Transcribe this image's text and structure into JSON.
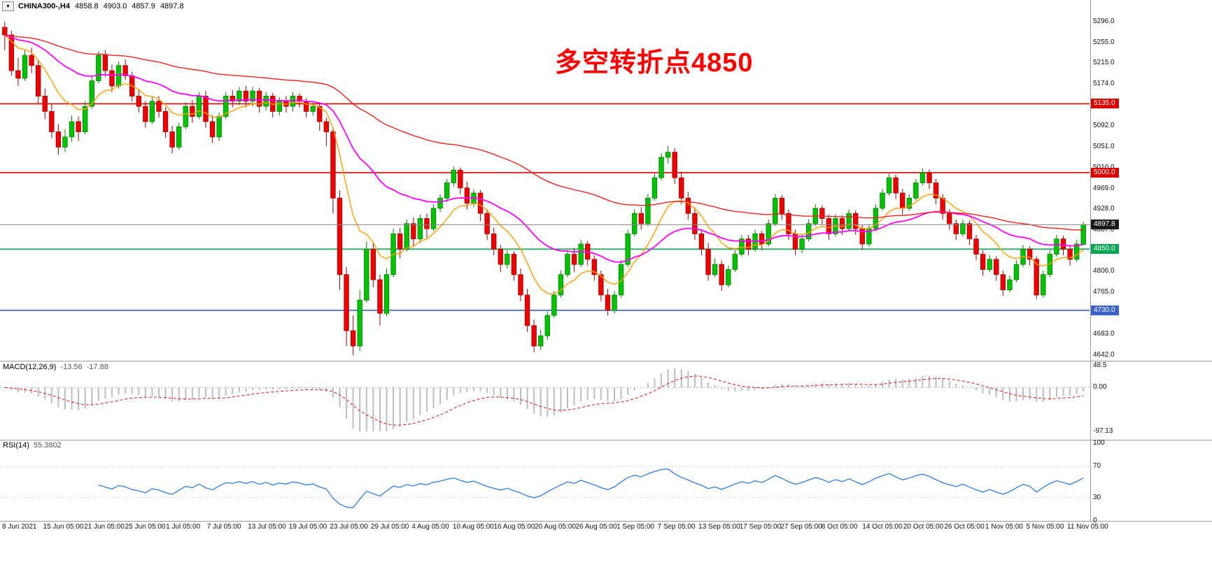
{
  "chart_data": {
    "type": "candlestick",
    "symbol": "CHINA300-,H4",
    "quote": {
      "open": "4858.8",
      "high": "4903.0",
      "low": "4857.9",
      "close": "4897.8"
    },
    "annotation": {
      "text": "多空转折点4850",
      "color": "#ff0000"
    },
    "price_range": {
      "max": 5296,
      "min": 4642
    },
    "price_axis_ticks": [
      "5296.0",
      "5255.0",
      "5215.0",
      "5174.0",
      "5092.0",
      "5051.0",
      "5010.0",
      "4969.0",
      "4928.0",
      "4887.0",
      "4806.0",
      "4765.0",
      "4724.0",
      "4683.0",
      "4642.0"
    ],
    "levels": [
      {
        "price": 5135.0,
        "label": "5135.0",
        "color": "#dd0000"
      },
      {
        "price": 5000.0,
        "label": "5000.0",
        "color": "#dd0000"
      },
      {
        "price": 4850.0,
        "label": "4850.0",
        "color": "#00a651"
      },
      {
        "price": 4730.0,
        "label": "4730.0",
        "color": "#3b62c8"
      }
    ],
    "current_price": {
      "value": 4897.8,
      "label": "4897.8",
      "line_color": "#858585",
      "box_color": "#1a1a1a"
    },
    "candle_colors": {
      "up": "#00c300",
      "up_border": "#007d00",
      "down": "#f00000",
      "down_border": "#990000"
    },
    "moving_averages": [
      {
        "name": "fast-ma",
        "period": 10,
        "color": "#ffa000",
        "width": 1.4
      },
      {
        "name": "mid-ma",
        "period": 30,
        "color": "#ff00ff",
        "width": 1.8
      },
      {
        "name": "slow-ma",
        "period": 80,
        "color": "#ee2222",
        "width": 1.4
      }
    ],
    "candles": [
      [
        5285,
        5296,
        5240,
        5270
      ],
      [
        5270,
        5278,
        5190,
        5200
      ],
      [
        5200,
        5225,
        5170,
        5185
      ],
      [
        5185,
        5240,
        5180,
        5230
      ],
      [
        5230,
        5245,
        5195,
        5210
      ],
      [
        5210,
        5220,
        5135,
        5150
      ],
      [
        5150,
        5165,
        5105,
        5120
      ],
      [
        5120,
        5135,
        5068,
        5080
      ],
      [
        5080,
        5095,
        5035,
        5050
      ],
      [
        5050,
        5085,
        5040,
        5070
      ],
      [
        5070,
        5112,
        5060,
        5100
      ],
      [
        5100,
        5110,
        5062,
        5080
      ],
      [
        5080,
        5140,
        5075,
        5130
      ],
      [
        5130,
        5190,
        5125,
        5180
      ],
      [
        5180,
        5238,
        5175,
        5230
      ],
      [
        5230,
        5240,
        5188,
        5200
      ],
      [
        5200,
        5212,
        5158,
        5170
      ],
      [
        5170,
        5218,
        5165,
        5210
      ],
      [
        5210,
        5222,
        5182,
        5190
      ],
      [
        5190,
        5198,
        5140,
        5150
      ],
      [
        5150,
        5162,
        5118,
        5130
      ],
      [
        5130,
        5140,
        5088,
        5100
      ],
      [
        5100,
        5148,
        5095,
        5140
      ],
      [
        5140,
        5150,
        5108,
        5120
      ],
      [
        5120,
        5128,
        5068,
        5080
      ],
      [
        5080,
        5092,
        5038,
        5050
      ],
      [
        5050,
        5098,
        5045,
        5090
      ],
      [
        5090,
        5138,
        5085,
        5130
      ],
      [
        5130,
        5142,
        5098,
        5110
      ],
      [
        5110,
        5158,
        5105,
        5150
      ],
      [
        5150,
        5160,
        5088,
        5100
      ],
      [
        5100,
        5112,
        5058,
        5070
      ],
      [
        5070,
        5118,
        5062,
        5110
      ],
      [
        5110,
        5158,
        5105,
        5150
      ],
      [
        5150,
        5162,
        5128,
        5140
      ],
      [
        5140,
        5168,
        5132,
        5160
      ],
      [
        5160,
        5170,
        5128,
        5140
      ],
      [
        5140,
        5168,
        5130,
        5160
      ],
      [
        5160,
        5166,
        5118,
        5130
      ],
      [
        5130,
        5158,
        5122,
        5150
      ],
      [
        5150,
        5156,
        5108,
        5120
      ],
      [
        5120,
        5148,
        5112,
        5140
      ],
      [
        5140,
        5150,
        5118,
        5130
      ],
      [
        5130,
        5158,
        5120,
        5150
      ],
      [
        5150,
        5156,
        5128,
        5140
      ],
      [
        5140,
        5146,
        5108,
        5120
      ],
      [
        5120,
        5138,
        5112,
        5130
      ],
      [
        5130,
        5136,
        5082,
        5100
      ],
      [
        5100,
        5108,
        5052,
        5080
      ],
      [
        5080,
        5088,
        4920,
        4950
      ],
      [
        4950,
        4965,
        4770,
        4800
      ],
      [
        4800,
        4815,
        4660,
        4690
      ],
      [
        4690,
        4720,
        4642,
        4660
      ],
      [
        4660,
        4770,
        4650,
        4750
      ],
      [
        4750,
        4865,
        4745,
        4850
      ],
      [
        4850,
        4862,
        4775,
        4790
      ],
      [
        4790,
        4800,
        4700,
        4724
      ],
      [
        4724,
        4812,
        4718,
        4800
      ],
      [
        4800,
        4890,
        4795,
        4880
      ],
      [
        4880,
        4892,
        4832,
        4850
      ],
      [
        4850,
        4908,
        4845,
        4900
      ],
      [
        4900,
        4912,
        4855,
        4870
      ],
      [
        4870,
        4918,
        4862,
        4910
      ],
      [
        4910,
        4920,
        4872,
        4890
      ],
      [
        4890,
        4938,
        4885,
        4930
      ],
      [
        4930,
        4958,
        4922,
        4950
      ],
      [
        4950,
        4988,
        4942,
        4980
      ],
      [
        4980,
        5012,
        4972,
        5005
      ],
      [
        5005,
        5010,
        4958,
        4970
      ],
      [
        4970,
        4982,
        4928,
        4940
      ],
      [
        4940,
        4968,
        4932,
        4960
      ],
      [
        4960,
        4966,
        4905,
        4920
      ],
      [
        4920,
        4928,
        4868,
        4880
      ],
      [
        4880,
        4892,
        4838,
        4850
      ],
      [
        4850,
        4858,
        4805,
        4820
      ],
      [
        4820,
        4848,
        4812,
        4840
      ],
      [
        4840,
        4846,
        4788,
        4800
      ],
      [
        4800,
        4812,
        4748,
        4760
      ],
      [
        4760,
        4772,
        4688,
        4700
      ],
      [
        4700,
        4712,
        4648,
        4660
      ],
      [
        4660,
        4692,
        4652,
        4680
      ],
      [
        4680,
        4728,
        4672,
        4720
      ],
      [
        4720,
        4768,
        4715,
        4760
      ],
      [
        4760,
        4808,
        4755,
        4800
      ],
      [
        4800,
        4848,
        4795,
        4840
      ],
      [
        4840,
        4852,
        4805,
        4820
      ],
      [
        4820,
        4868,
        4815,
        4860
      ],
      [
        4860,
        4866,
        4818,
        4830
      ],
      [
        4830,
        4838,
        4788,
        4800
      ],
      [
        4800,
        4808,
        4748,
        4760
      ],
      [
        4760,
        4772,
        4720,
        4730
      ],
      [
        4730,
        4768,
        4724,
        4760
      ],
      [
        4760,
        4828,
        4755,
        4820
      ],
      [
        4820,
        4888,
        4815,
        4880
      ],
      [
        4880,
        4928,
        4875,
        4920
      ],
      [
        4920,
        4932,
        4888,
        4900
      ],
      [
        4900,
        4958,
        4895,
        4950
      ],
      [
        4950,
        4998,
        4945,
        4990
      ],
      [
        4990,
        5038,
        4985,
        5030
      ],
      [
        5030,
        5052,
        5018,
        5040
      ],
      [
        5040,
        5048,
        4978,
        4990
      ],
      [
        4990,
        5002,
        4938,
        4950
      ],
      [
        4950,
        4962,
        4908,
        4920
      ],
      [
        4920,
        4932,
        4868,
        4880
      ],
      [
        4880,
        4888,
        4838,
        4850
      ],
      [
        4850,
        4862,
        4788,
        4800
      ],
      [
        4800,
        4832,
        4795,
        4820
      ],
      [
        4820,
        4828,
        4768,
        4780
      ],
      [
        4780,
        4818,
        4775,
        4810
      ],
      [
        4810,
        4848,
        4805,
        4840
      ],
      [
        4840,
        4878,
        4835,
        4870
      ],
      [
        4870,
        4878,
        4838,
        4850
      ],
      [
        4850,
        4888,
        4845,
        4880
      ],
      [
        4880,
        4886,
        4848,
        4860
      ],
      [
        4860,
        4908,
        4855,
        4900
      ],
      [
        4900,
        4958,
        4895,
        4950
      ],
      [
        4950,
        4956,
        4908,
        4920
      ],
      [
        4920,
        4928,
        4868,
        4880
      ],
      [
        4880,
        4888,
        4838,
        4850
      ],
      [
        4850,
        4878,
        4842,
        4870
      ],
      [
        4870,
        4908,
        4865,
        4900
      ],
      [
        4900,
        4938,
        4895,
        4930
      ],
      [
        4930,
        4936,
        4898,
        4910
      ],
      [
        4910,
        4918,
        4868,
        4880
      ],
      [
        4880,
        4918,
        4875,
        4910
      ],
      [
        4910,
        4916,
        4878,
        4890
      ],
      [
        4890,
        4928,
        4885,
        4920
      ],
      [
        4920,
        4926,
        4878,
        4890
      ],
      [
        4890,
        4898,
        4848,
        4860
      ],
      [
        4860,
        4898,
        4855,
        4890
      ],
      [
        4890,
        4938,
        4885,
        4930
      ],
      [
        4930,
        4968,
        4925,
        4960
      ],
      [
        4960,
        4998,
        4955,
        4990
      ],
      [
        4990,
        4996,
        4948,
        4960
      ],
      [
        4960,
        4968,
        4918,
        4930
      ],
      [
        4930,
        4958,
        4925,
        4950
      ],
      [
        4950,
        4988,
        4945,
        4980
      ],
      [
        4980,
        5008,
        4975,
        5000
      ],
      [
        5000,
        5006,
        4968,
        4980
      ],
      [
        4980,
        4988,
        4938,
        4950
      ],
      [
        4950,
        4958,
        4908,
        4920
      ],
      [
        4920,
        4928,
        4888,
        4900
      ],
      [
        4900,
        4908,
        4868,
        4880
      ],
      [
        4880,
        4908,
        4875,
        4900
      ],
      [
        4900,
        4906,
        4858,
        4870
      ],
      [
        4870,
        4878,
        4828,
        4840
      ],
      [
        4840,
        4848,
        4798,
        4810
      ],
      [
        4810,
        4838,
        4805,
        4830
      ],
      [
        4830,
        4836,
        4788,
        4800
      ],
      [
        4800,
        4808,
        4758,
        4770
      ],
      [
        4770,
        4798,
        4765,
        4790
      ],
      [
        4790,
        4828,
        4785,
        4820
      ],
      [
        4820,
        4858,
        4815,
        4850
      ],
      [
        4850,
        4856,
        4818,
        4830
      ],
      [
        4830,
        4836,
        4752,
        4760
      ],
      [
        4760,
        4808,
        4755,
        4800
      ],
      [
        4800,
        4848,
        4795,
        4840
      ],
      [
        4840,
        4878,
        4835,
        4870
      ],
      [
        4870,
        4876,
        4838,
        4850
      ],
      [
        4850,
        4858,
        4818,
        4830
      ],
      [
        4830,
        4868,
        4825,
        4860
      ],
      [
        4859,
        4903,
        4858,
        4898
      ]
    ],
    "macd": {
      "name": "MACD(12,26,9)",
      "value_main": "-13.56",
      "value_signal": "-17.88",
      "fast": 12,
      "slow": 26,
      "signal": 9,
      "axis_ticks": [
        "48.5",
        "0.00",
        "-97.13"
      ],
      "scale_max": 48.5,
      "scale_min": -97.13,
      "histogram_color": "#bdbdbd",
      "signal_color": "#e01010"
    },
    "rsi": {
      "name": "RSI(14)",
      "value": "55.3802",
      "period": 14,
      "axis_ticks": [
        "100",
        "70",
        "30",
        "0"
      ],
      "levels": [
        70,
        30
      ],
      "line_color": "#2f7ed8"
    },
    "time_axis": [
      "8 Jun 2021",
      "15 Jun 05:00",
      "21 Jun 05:00",
      "25 Jun 05:00",
      "1 Jul 05:00",
      "7 Jul 05:00",
      "13 Jul 05:00",
      "19 Jul 05:00",
      "23 Jul 05:00",
      "29 Jul 05:00",
      "4 Aug 05:00",
      "10 Aug 05:00",
      "16 Aug 05:00",
      "20 Aug 05:00",
      "26 Aug 05:00",
      "1 Sep 05:00",
      "7 Sep 05:00",
      "13 Sep 05:00",
      "17 Sep 05:00",
      "27 Sep 05:00",
      "8 Oct 05:00",
      "14 Oct 05:00",
      "20 Oct 05:00",
      "26 Oct 05:00",
      "1 Nov 05:00",
      "5 Nov 05:00",
      "11 Nov 05:00"
    ]
  }
}
